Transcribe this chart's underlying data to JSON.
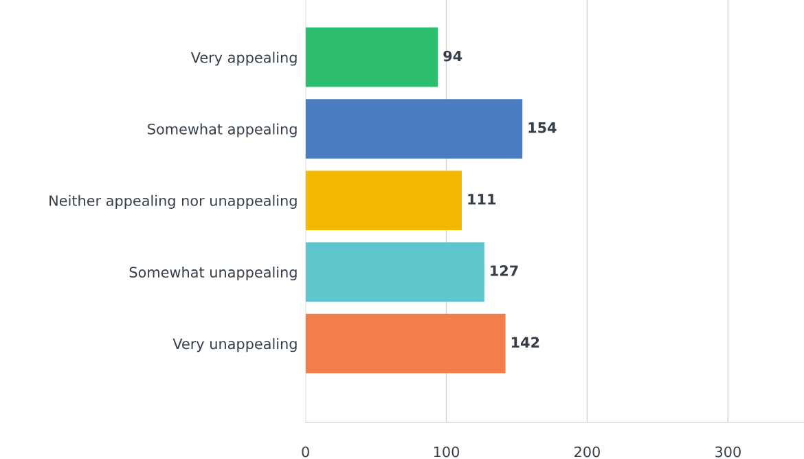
{
  "chart_data": {
    "type": "bar",
    "orientation": "horizontal",
    "categories": [
      "Very appealing",
      "Somewhat appealing",
      "Neither appealing nor unappealing",
      "Somewhat unappealing",
      "Very unappealing"
    ],
    "values": [
      94,
      154,
      111,
      127,
      142
    ],
    "colors": [
      "#2dbd6e",
      "#4a7cc0",
      "#f5b800",
      "#5ec6cc",
      "#f27e4a"
    ],
    "xlim": [
      0,
      354
    ],
    "xticks": [
      0,
      100,
      200,
      300
    ],
    "grid": "x",
    "data_labels": true
  }
}
